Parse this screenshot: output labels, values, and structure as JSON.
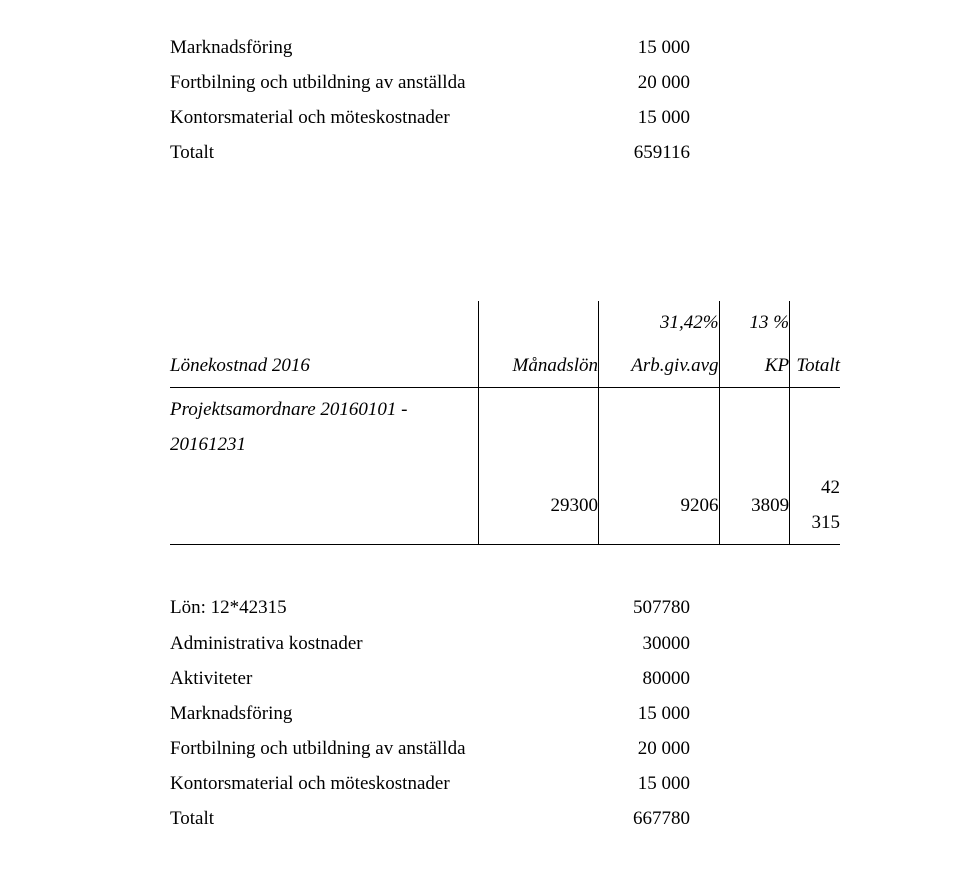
{
  "upper": {
    "rows": [
      {
        "label": "Marknadsföring",
        "value": "15 000"
      },
      {
        "label": "Fortbilning och utbildning av anställda",
        "value": "20 000"
      },
      {
        "label": "Kontorsmaterial och möteskostnader",
        "value": "15 000"
      },
      {
        "label": "Totalt",
        "value": "659116"
      }
    ]
  },
  "lonetable": {
    "pct1": "31,42%",
    "pct2": "13 %",
    "head": {
      "c1": "Lönekostnad 2016",
      "c2": "Månadslön",
      "c3": "Arb.giv.avg",
      "c4": "KP",
      "c5": "Totalt"
    },
    "proj_label": "Projektsamordnare 20160101 - 20161231",
    "data": {
      "c2": "29300",
      "c3": "9206",
      "c4": "3809",
      "c5": "42 315"
    }
  },
  "lower": {
    "rows": [
      {
        "label": "Lön: 12*42315",
        "value": "507780"
      },
      {
        "label": "Administrativa kostnader",
        "value": "30000"
      },
      {
        "label": "Aktiviteter",
        "value": "80000"
      },
      {
        "label": "Marknadsföring",
        "value": "15 000"
      },
      {
        "label": "Fortbilning och utbildning av anställda",
        "value": "20 000"
      },
      {
        "label": "Kontorsmaterial och möteskostnader",
        "value": "15 000"
      },
      {
        "label": "Totalt",
        "value": "667780"
      }
    ]
  }
}
